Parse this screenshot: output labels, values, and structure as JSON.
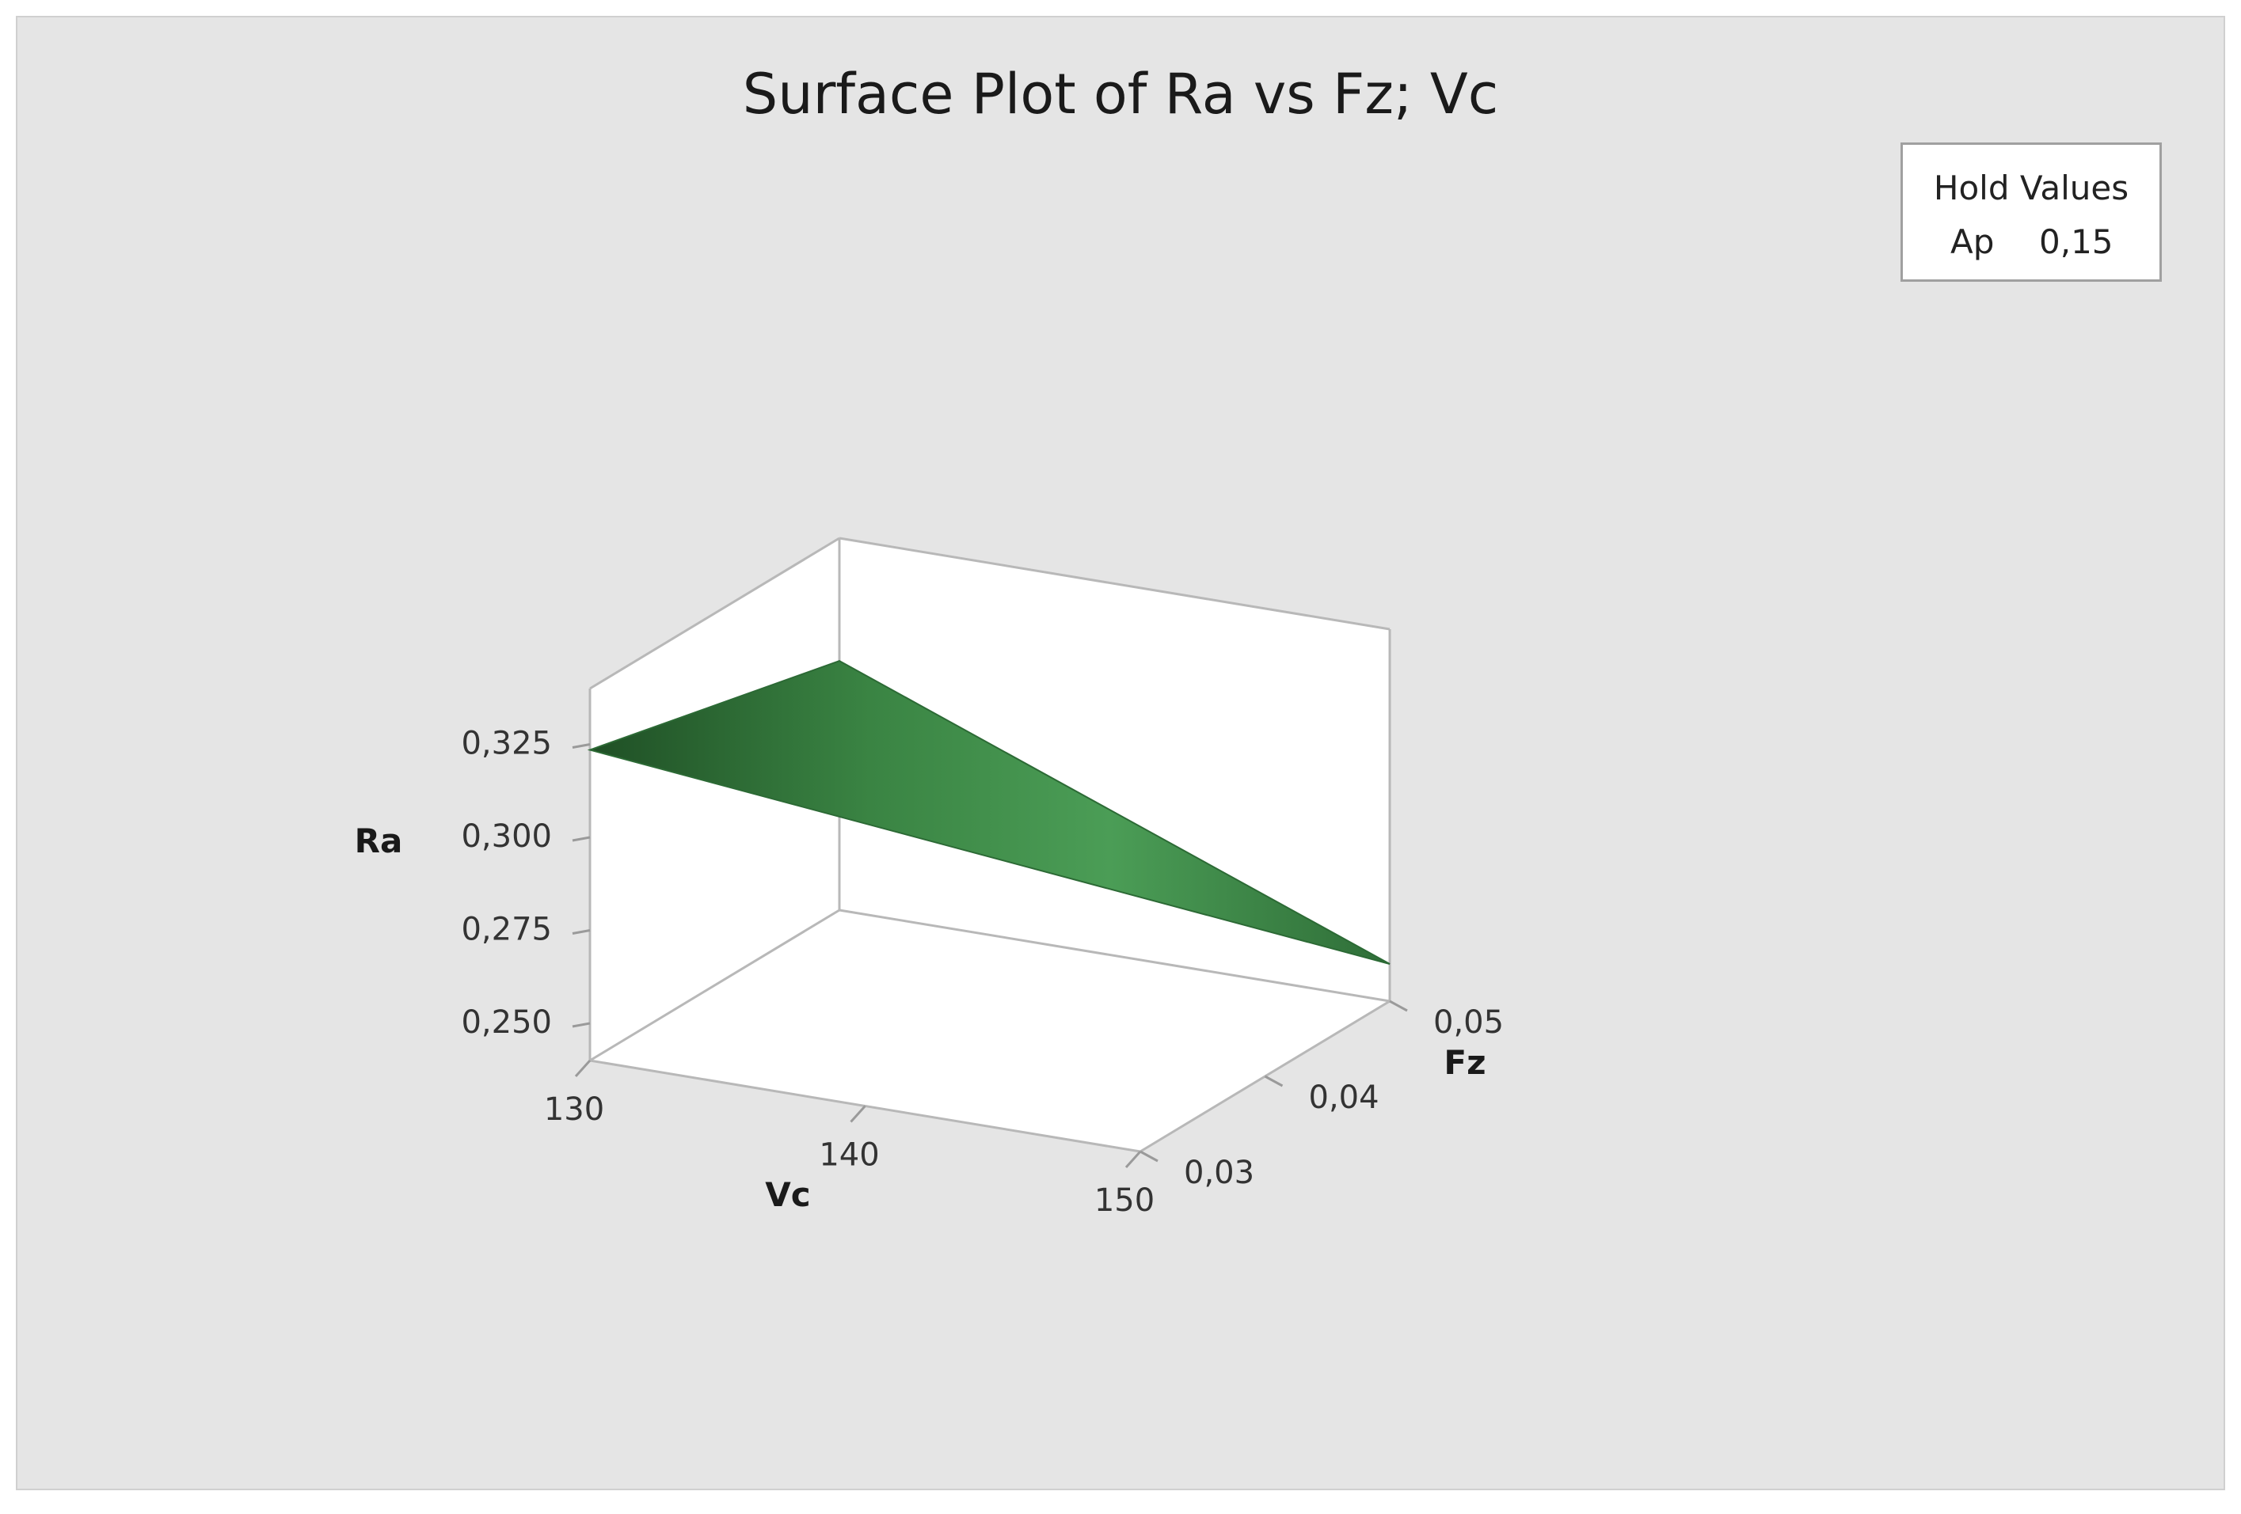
{
  "chart_data": {
    "type": "surface",
    "title": "Surface Plot of Ra vs Fz; Vc",
    "xlabel": "Vc",
    "ylabel": "Fz",
    "zlabel": "Ra",
    "x_ticks": [
      "130",
      "140",
      "150"
    ],
    "y_ticks": [
      "0,03",
      "0,04",
      "0,05"
    ],
    "z_ticks": [
      "0,250",
      "0,275",
      "0,300",
      "0,325"
    ],
    "xlim": [
      130,
      150
    ],
    "ylim": [
      0.03,
      0.05
    ],
    "zlim": [
      0.24,
      0.34
    ],
    "hold_values": {
      "title": "Hold Values",
      "name": "Ap",
      "value": "0,15"
    },
    "surface_color": "#3f8f4c",
    "surface_vertices": [
      {
        "Vc": 130,
        "Fz": 0.03,
        "Ra": 0.3235
      },
      {
        "Vc": 130,
        "Fz": 0.05,
        "Ra": 0.307
      },
      {
        "Vc": 150,
        "Fz": 0.05,
        "Ra": 0.25
      }
    ]
  }
}
